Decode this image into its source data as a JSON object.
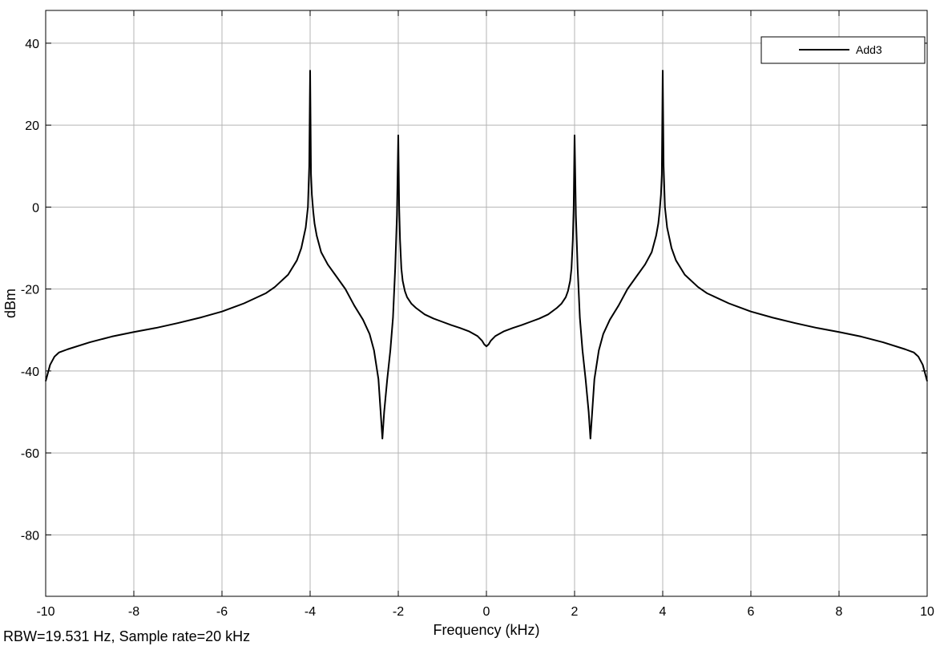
{
  "footer_note": "RBW=19.531 Hz, Sample rate=20 kHz",
  "chart_data": {
    "type": "line",
    "title": "",
    "xlabel": "Frequency (kHz)",
    "ylabel": "dBm",
    "xlim": [
      -10,
      10
    ],
    "ylim": [
      -95,
      48
    ],
    "x_ticks": [
      -10,
      -8,
      -6,
      -4,
      -2,
      0,
      2,
      4,
      6,
      8,
      10
    ],
    "y_ticks": [
      -80,
      -60,
      -40,
      -20,
      0,
      20,
      40
    ],
    "grid": true,
    "legend_position": "top-right",
    "line_color": "#000000",
    "series": [
      {
        "name": "Add3",
        "points": [
          [
            0.0,
            -34.0
          ],
          [
            0.05,
            -33.5
          ],
          [
            0.1,
            -32.6
          ],
          [
            0.2,
            -31.5
          ],
          [
            0.4,
            -30.3
          ],
          [
            0.6,
            -29.5
          ],
          [
            0.8,
            -28.8
          ],
          [
            1.0,
            -28.0
          ],
          [
            1.2,
            -27.2
          ],
          [
            1.4,
            -26.2
          ],
          [
            1.6,
            -24.6
          ],
          [
            1.7,
            -23.6
          ],
          [
            1.8,
            -22.0
          ],
          [
            1.85,
            -20.5
          ],
          [
            1.9,
            -18.0
          ],
          [
            1.93,
            -15.0
          ],
          [
            1.96,
            -8.0
          ],
          [
            1.98,
            0.0
          ],
          [
            2.0,
            17.5
          ],
          [
            2.03,
            -2.0
          ],
          [
            2.07,
            -15.0
          ],
          [
            2.12,
            -27.0
          ],
          [
            2.18,
            -35.0
          ],
          [
            2.25,
            -42.0
          ],
          [
            2.32,
            -50.0
          ],
          [
            2.36,
            -56.5
          ],
          [
            2.4,
            -50.0
          ],
          [
            2.45,
            -42.0
          ],
          [
            2.55,
            -35.0
          ],
          [
            2.65,
            -31.0
          ],
          [
            2.8,
            -27.5
          ],
          [
            3.0,
            -24.0
          ],
          [
            3.2,
            -20.0
          ],
          [
            3.4,
            -17.0
          ],
          [
            3.6,
            -14.0
          ],
          [
            3.75,
            -11.0
          ],
          [
            3.85,
            -7.0
          ],
          [
            3.9,
            -4.0
          ],
          [
            3.93,
            -1.0
          ],
          [
            3.96,
            3.0
          ],
          [
            3.98,
            8.0
          ],
          [
            4.0,
            33.3
          ],
          [
            4.02,
            10.0
          ],
          [
            4.05,
            0.0
          ],
          [
            4.1,
            -5.0
          ],
          [
            4.2,
            -10.0
          ],
          [
            4.3,
            -13.0
          ],
          [
            4.5,
            -16.5
          ],
          [
            4.8,
            -19.5
          ],
          [
            5.0,
            -21.0
          ],
          [
            5.5,
            -23.5
          ],
          [
            6.0,
            -25.5
          ],
          [
            6.5,
            -27.0
          ],
          [
            7.0,
            -28.3
          ],
          [
            7.5,
            -29.5
          ],
          [
            8.0,
            -30.5
          ],
          [
            8.5,
            -31.6
          ],
          [
            9.0,
            -33.0
          ],
          [
            9.5,
            -34.7
          ],
          [
            9.7,
            -35.5
          ],
          [
            9.8,
            -36.5
          ],
          [
            9.9,
            -38.5
          ],
          [
            10.0,
            -42.5
          ]
        ]
      }
    ]
  }
}
